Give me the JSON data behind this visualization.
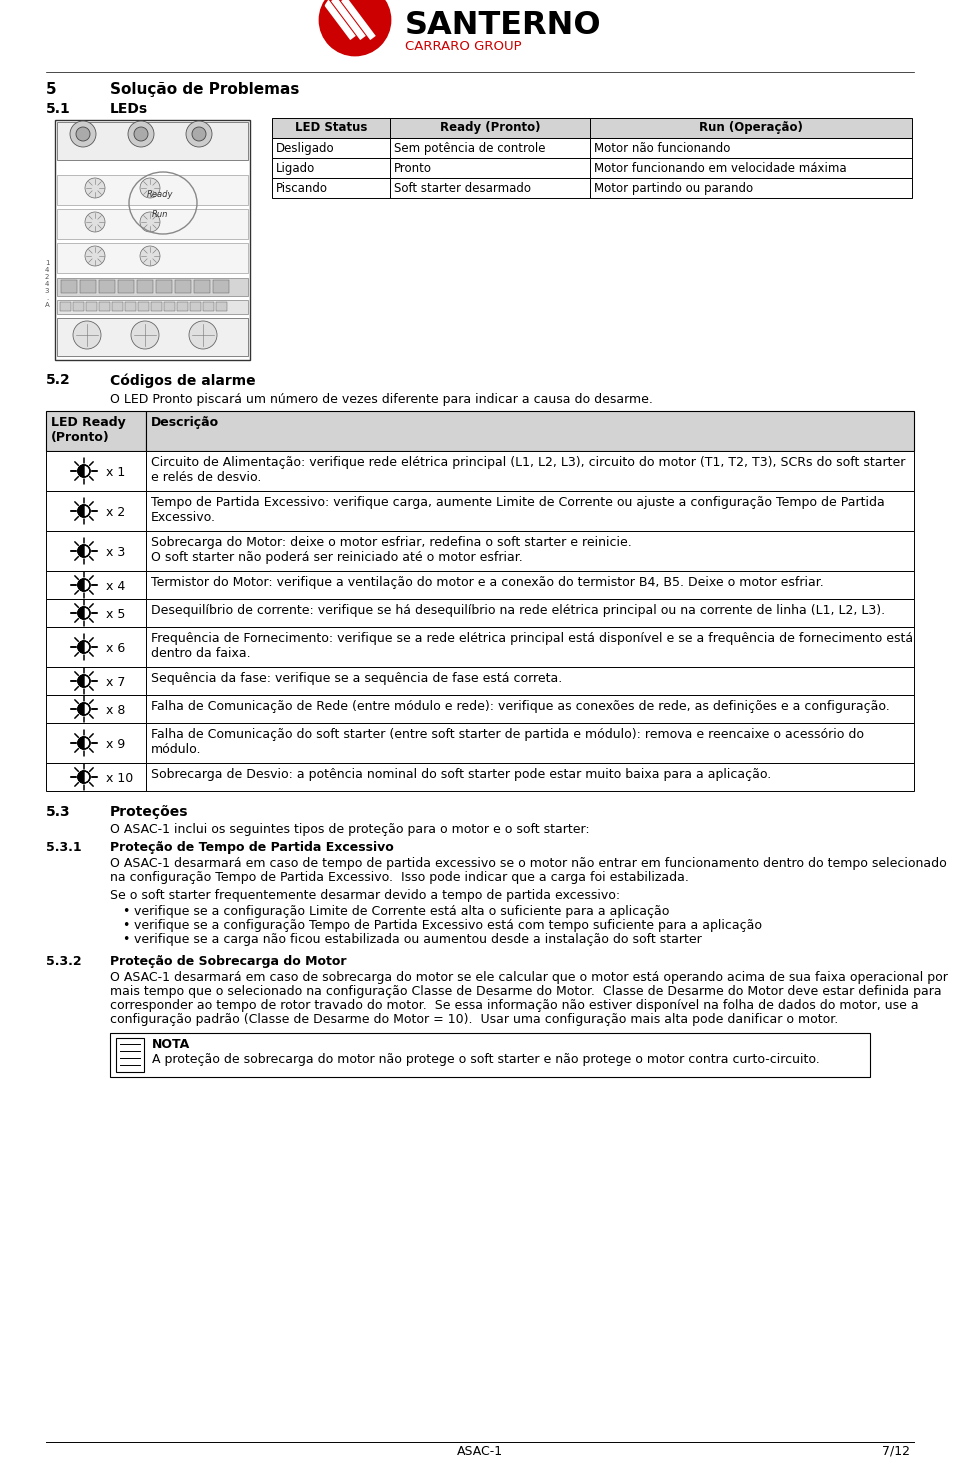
{
  "led_table_headers": [
    "LED Status",
    "Ready (Pronto)",
    "Run (Operação)"
  ],
  "led_table_rows": [
    [
      "Desligado",
      "Sem potência de controle",
      "Motor não funcionando"
    ],
    [
      "Ligado",
      "Pronto",
      "Motor funcionando em velocidade máxima"
    ],
    [
      "Piscando",
      "Soft starter desarmado",
      "Motor partindo ou parando"
    ]
  ],
  "alarm_intro": "O LED Pronto piscará um número de vezes diferente para indicar a causa do desarme.",
  "alarm_rows": [
    [
      "x 1",
      "Circuito de Alimentação: verifique rede elétrica principal (L1, L2, L3), circuito do motor (T1, T2, T3), SCRs do soft starter\ne relés de desvio."
    ],
    [
      "x 2",
      "Tempo de Partida Excessivo: verifique carga, aumente Limite de Corrente ou ajuste a configuração Tempo de Partida\nExcessivo."
    ],
    [
      "x 3",
      "Sobrecarga do Motor: deixe o motor esfriar, redefina o soft starter e reinicie.\nO soft starter não poderá ser reiniciado até o motor esfriar."
    ],
    [
      "x 4",
      "Termistor do Motor: verifique a ventilação do motor e a conexão do termistor B4, B5. Deixe o motor esfriar."
    ],
    [
      "x 5",
      "Desequilíbrio de corrente: verifique se há desequilíbrio na rede elétrica principal ou na corrente de linha (L1, L2, L3)."
    ],
    [
      "x 6",
      "Frequência de Fornecimento: verifique se a rede elétrica principal está disponível e se a frequência de fornecimento está\ndentro da faixa."
    ],
    [
      "x 7",
      "Sequência da fase: verifique se a sequência de fase está correta."
    ],
    [
      "x 8",
      "Falha de Comunicação de Rede (entre módulo e rede): verifique as conexões de rede, as definições e a configuração."
    ],
    [
      "x 9",
      "Falha de Comunicação do soft starter (entre soft starter de partida e módulo): remova e reencaixe o acessório do\nmódulo."
    ],
    [
      "x 10",
      "Sobrecarga de Desvio: a potência nominal do soft starter pode estar muito baixa para a aplicação."
    ]
  ],
  "protecoes_text": "O ASAC-1 inclui os seguintes tipos de proteção para o motor e o soft starter:",
  "protecao_531_text1": "O ASAC-1 desarmará em caso de tempo de partida excessivo se o motor não entrar em funcionamento dentro do tempo selecionado",
  "protecao_531_text2": "na configuração Tempo de Partida Excessivo.  Isso pode indicar que a carga foi estabilizada.",
  "protecao_531_text3": "Se o soft starter frequentemente desarmar devido a tempo de partida excessivo:",
  "protecao_531_bullets": [
    "verifique se a configuração Limite de Corrente está alta o suficiente para a aplicação",
    "verifique se a configuração Tempo de Partida Excessivo está com tempo suficiente para a aplicação",
    "verifique se a carga não ficou estabilizada ou aumentou desde a instalação do soft starter"
  ],
  "protecao_532_text1": "O ASAC-1 desarmará em caso de sobrecarga do motor se ele calcular que o motor está operando acima de sua faixa operacional por",
  "protecao_532_text2": "mais tempo que o selecionado na configuração Classe de Desarme do Motor.  Classe de Desarme do Motor deve estar definida para",
  "protecao_532_text3": "corresponder ao tempo de rotor travado do motor.  Se essa informação não estiver disponível na folha de dados do motor, use a",
  "protecao_532_text4": "configuração padrão (Classe de Desarme do Motor = 10).  Usar uma configuração mais alta pode danificar o motor.",
  "nota_text": "A proteção de sobrecarga do motor não protege o soft starter e não protege o motor contra curto-circuito.",
  "footer_center": "ASAC-1",
  "footer_right": "7/12",
  "bg_color": "#ffffff",
  "gray_header": "#d3d3d3",
  "black": "#000000",
  "red": "#cc0000"
}
